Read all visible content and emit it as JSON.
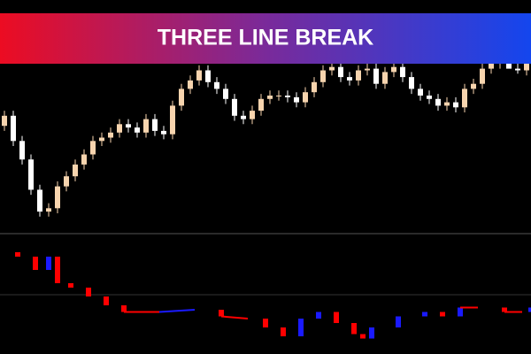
{
  "chart_data": [
    {
      "type": "candlestick",
      "title": "THREE LINE BREAK",
      "up_color": "#f7d4ae",
      "down_color": "#ffffff",
      "open": [
        62,
        68,
        53,
        42,
        24,
        11,
        13,
        26,
        32,
        39,
        45,
        53,
        55,
        58,
        63,
        61,
        58,
        66,
        59,
        57,
        74,
        84,
        89,
        95,
        88,
        84,
        78,
        68,
        66,
        71,
        78,
        80,
        80,
        79,
        76,
        82,
        88,
        95,
        97,
        91,
        89,
        95,
        96,
        87,
        94,
        97,
        91,
        84,
        80,
        78,
        74,
        76,
        73,
        84,
        87,
        96,
        99,
        100,
        96,
        95
      ],
      "high": [
        71,
        71,
        56,
        45,
        27,
        16,
        29,
        35,
        42,
        48,
        56,
        58,
        61,
        66,
        66,
        64,
        69,
        69,
        62,
        77,
        87,
        92,
        98,
        98,
        91,
        87,
        81,
        71,
        74,
        81,
        83,
        83,
        83,
        82,
        85,
        91,
        98,
        100,
        100,
        94,
        98,
        99,
        99,
        97,
        100,
        100,
        94,
        87,
        83,
        81,
        79,
        79,
        87,
        90,
        99,
        102,
        103,
        103,
        99,
        102
      ],
      "low": [
        59,
        50,
        39,
        21,
        8,
        8,
        10,
        23,
        29,
        36,
        42,
        50,
        52,
        55,
        58,
        55,
        55,
        56,
        54,
        54,
        71,
        81,
        86,
        85,
        81,
        75,
        65,
        63,
        63,
        68,
        75,
        77,
        76,
        73,
        73,
        79,
        85,
        92,
        88,
        86,
        86,
        92,
        84,
        84,
        91,
        88,
        81,
        77,
        75,
        71,
        71,
        70,
        70,
        81,
        84,
        93,
        96,
        97,
        93,
        92
      ],
      "close": [
        68,
        53,
        42,
        24,
        11,
        13,
        26,
        32,
        39,
        45,
        53,
        55,
        58,
        63,
        61,
        58,
        66,
        59,
        57,
        74,
        84,
        89,
        95,
        88,
        84,
        78,
        68,
        66,
        71,
        78,
        80,
        80,
        79,
        76,
        82,
        88,
        95,
        97,
        91,
        89,
        95,
        96,
        87,
        94,
        97,
        91,
        84,
        80,
        78,
        74,
        76,
        73,
        84,
        87,
        96,
        99,
        100,
        96,
        95,
        99
      ],
      "ylim": [
        0,
        100
      ]
    },
    {
      "type": "line-break",
      "up_color": "#1a1aff",
      "down_color": "#ff0000",
      "x": [
        0,
        20,
        40,
        55,
        65,
        80,
        100,
        120,
        140,
        180,
        220,
        250,
        280,
        300,
        320,
        340,
        360,
        380,
        400,
        410,
        420,
        450,
        480,
        500,
        520,
        540,
        570,
        590,
        600
      ],
      "values": [
        88,
        84,
        72,
        84,
        60,
        56,
        48,
        40,
        34,
        34,
        36,
        30,
        28,
        20,
        12,
        28,
        34,
        24,
        14,
        10,
        20,
        30,
        34,
        30,
        38,
        38,
        34,
        34,
        38
      ],
      "xlim": [
        0,
        600
      ],
      "ylim": [
        0,
        100
      ]
    }
  ]
}
